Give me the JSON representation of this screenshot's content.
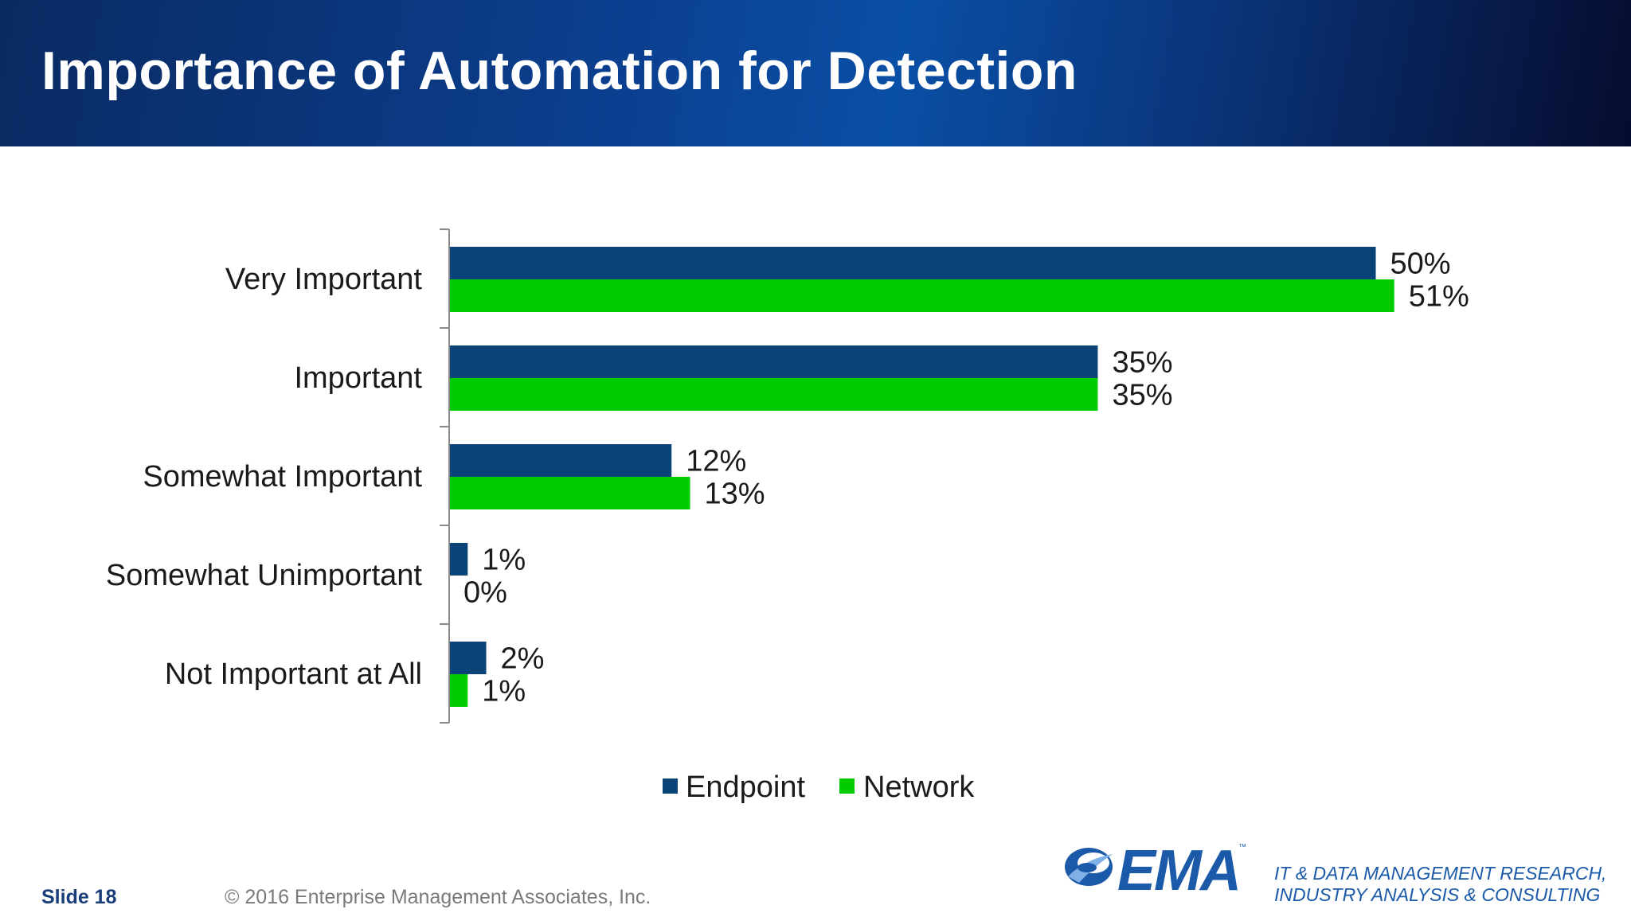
{
  "slide": {
    "title": "Importance of Automation for Detection",
    "slide_number": "Slide 18",
    "copyright": "© 2016 Enterprise Management Associates, Inc.",
    "logo_text": "EMA",
    "logo_tm": "™",
    "tagline_line1": "IT & DATA MANAGEMENT RESEARCH,",
    "tagline_line2": "INDUSTRY ANALYSIS & CONSULTING"
  },
  "colors": {
    "endpoint": "#0a4377",
    "network": "#00cc00",
    "axis": "#8a8a8a",
    "text": "#1a1a1a"
  },
  "chart_data": {
    "type": "bar",
    "orientation": "horizontal",
    "categories": [
      "Very Important",
      "Important",
      "Somewhat Important",
      "Somewhat Unimportant",
      "Not Important at All"
    ],
    "series": [
      {
        "name": "Endpoint",
        "values": [
          50,
          35,
          12,
          1,
          2
        ],
        "labels": [
          "50%",
          "35%",
          "12%",
          "1%",
          "2%"
        ]
      },
      {
        "name": "Network",
        "values": [
          51,
          35,
          13,
          0,
          1
        ],
        "labels": [
          "51%",
          "35%",
          "13%",
          "0%",
          "1%"
        ]
      }
    ],
    "xlim": [
      0,
      60
    ],
    "grid": false,
    "legend_position": "bottom"
  }
}
